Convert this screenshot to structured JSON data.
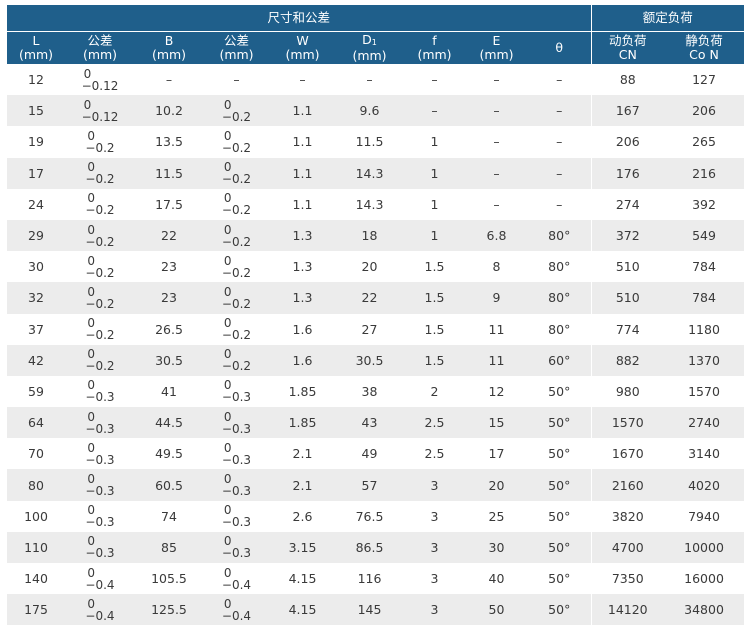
{
  "header": {
    "dims_group": "尺寸和公差",
    "load_group": "额定负荷",
    "cols": {
      "L": {
        "name": "L",
        "unit": "(mm)"
      },
      "tol1": {
        "name": "公差",
        "unit": "(mm)"
      },
      "B": {
        "name": "B",
        "unit": "(mm)"
      },
      "tol2": {
        "name": "公差",
        "unit": "(mm)"
      },
      "W": {
        "name": "W",
        "unit": "(mm)"
      },
      "D1": {
        "name": "D",
        "sub": "1",
        "unit": "(mm)"
      },
      "f": {
        "name": "f",
        "unit": "(mm)"
      },
      "E": {
        "name": "E",
        "unit": "(mm)"
      },
      "theta": {
        "name": "θ"
      },
      "dyn": {
        "name": "动负荷",
        "unit": "CN"
      },
      "stat": {
        "name": "静负荷",
        "unit": "Co N"
      }
    }
  },
  "rows": [
    {
      "L": "12",
      "tolA_up": "0",
      "tolA_low": "−0.12",
      "B": "–",
      "tolB_up": "",
      "tolB_low": "–",
      "W": "–",
      "D1": "–",
      "f": "–",
      "E": "–",
      "theta": "–",
      "CN": "88",
      "CoN": "127"
    },
    {
      "L": "15",
      "tolA_up": "0",
      "tolA_low": "−0.12",
      "B": "10.2",
      "tolB_up": "0",
      "tolB_low": "−0.2",
      "W": "1.1",
      "D1": "9.6",
      "f": "–",
      "E": "–",
      "theta": "–",
      "CN": "167",
      "CoN": "206"
    },
    {
      "L": "19",
      "tolA_up": "0",
      "tolA_low": "−0.2",
      "B": "13.5",
      "tolB_up": "0",
      "tolB_low": "−0.2",
      "W": "1.1",
      "D1": "11.5",
      "f": "1",
      "E": "–",
      "theta": "–",
      "CN": "206",
      "CoN": "265"
    },
    {
      "L": "17",
      "tolA_up": "0",
      "tolA_low": "−0.2",
      "B": "11.5",
      "tolB_up": "0",
      "tolB_low": "−0.2",
      "W": "1.1",
      "D1": "14.3",
      "f": "1",
      "E": "–",
      "theta": "–",
      "CN": "176",
      "CoN": "216"
    },
    {
      "L": "24",
      "tolA_up": "0",
      "tolA_low": "−0.2",
      "B": "17.5",
      "tolB_up": "0",
      "tolB_low": "−0.2",
      "W": "1.1",
      "D1": "14.3",
      "f": "1",
      "E": "–",
      "theta": "–",
      "CN": "274",
      "CoN": "392"
    },
    {
      "L": "29",
      "tolA_up": "0",
      "tolA_low": "−0.2",
      "B": "22",
      "tolB_up": "0",
      "tolB_low": "−0.2",
      "W": "1.3",
      "D1": "18",
      "f": "1",
      "E": "6.8",
      "theta": "80°",
      "CN": "372",
      "CoN": "549"
    },
    {
      "L": "30",
      "tolA_up": "0",
      "tolA_low": "−0.2",
      "B": "23",
      "tolB_up": "0",
      "tolB_low": "−0.2",
      "W": "1.3",
      "D1": "20",
      "f": "1.5",
      "E": "8",
      "theta": "80°",
      "CN": "510",
      "CoN": "784"
    },
    {
      "L": "32",
      "tolA_up": "0",
      "tolA_low": "−0.2",
      "B": "23",
      "tolB_up": "0",
      "tolB_low": "−0.2",
      "W": "1.3",
      "D1": "22",
      "f": "1.5",
      "E": "9",
      "theta": "80°",
      "CN": "510",
      "CoN": "784"
    },
    {
      "L": "37",
      "tolA_up": "0",
      "tolA_low": "−0.2",
      "B": "26.5",
      "tolB_up": "0",
      "tolB_low": "−0.2",
      "W": "1.6",
      "D1": "27",
      "f": "1.5",
      "E": "11",
      "theta": "80°",
      "CN": "774",
      "CoN": "1180"
    },
    {
      "L": "42",
      "tolA_up": "0",
      "tolA_low": "−0.2",
      "B": "30.5",
      "tolB_up": "0",
      "tolB_low": "−0.2",
      "W": "1.6",
      "D1": "30.5",
      "f": "1.5",
      "E": "11",
      "theta": "60°",
      "CN": "882",
      "CoN": "1370"
    },
    {
      "L": "59",
      "tolA_up": "0",
      "tolA_low": "−0.3",
      "B": "41",
      "tolB_up": "0",
      "tolB_low": "−0.3",
      "W": "1.85",
      "D1": "38",
      "f": "2",
      "E": "12",
      "theta": "50°",
      "CN": "980",
      "CoN": "1570"
    },
    {
      "L": "64",
      "tolA_up": "0",
      "tolA_low": "−0.3",
      "B": "44.5",
      "tolB_up": "0",
      "tolB_low": "−0.3",
      "W": "1.85",
      "D1": "43",
      "f": "2.5",
      "E": "15",
      "theta": "50°",
      "CN": "1570",
      "CoN": "2740"
    },
    {
      "L": "70",
      "tolA_up": "0",
      "tolA_low": "−0.3",
      "B": "49.5",
      "tolB_up": "0",
      "tolB_low": "−0.3",
      "W": "2.1",
      "D1": "49",
      "f": "2.5",
      "E": "17",
      "theta": "50°",
      "CN": "1670",
      "CoN": "3140"
    },
    {
      "L": "80",
      "tolA_up": "0",
      "tolA_low": "−0.3",
      "B": "60.5",
      "tolB_up": "0",
      "tolB_low": "−0.3",
      "W": "2.1",
      "D1": "57",
      "f": "3",
      "E": "20",
      "theta": "50°",
      "CN": "2160",
      "CoN": "4020"
    },
    {
      "L": "100",
      "tolA_up": "0",
      "tolA_low": "−0.3",
      "B": "74",
      "tolB_up": "0",
      "tolB_low": "−0.3",
      "W": "2.6",
      "D1": "76.5",
      "f": "3",
      "E": "25",
      "theta": "50°",
      "CN": "3820",
      "CoN": "7940"
    },
    {
      "L": "110",
      "tolA_up": "0",
      "tolA_low": "−0.3",
      "B": "85",
      "tolB_up": "0",
      "tolB_low": "−0.3",
      "W": "3.15",
      "D1": "86.5",
      "f": "3",
      "E": "30",
      "theta": "50°",
      "CN": "4700",
      "CoN": "10000"
    },
    {
      "L": "140",
      "tolA_up": "0",
      "tolA_low": "−0.4",
      "B": "105.5",
      "tolB_up": "0",
      "tolB_low": "−0.4",
      "W": "4.15",
      "D1": "116",
      "f": "3",
      "E": "40",
      "theta": "50°",
      "CN": "7350",
      "CoN": "16000"
    },
    {
      "L": "175",
      "tolA_up": "0",
      "tolA_low": "−0.4",
      "B": "125.5",
      "tolB_up": "0",
      "tolB_low": "−0.4",
      "W": "4.15",
      "D1": "145",
      "f": "3",
      "E": "50",
      "theta": "50°",
      "CN": "14120",
      "CoN": "34800"
    }
  ]
}
